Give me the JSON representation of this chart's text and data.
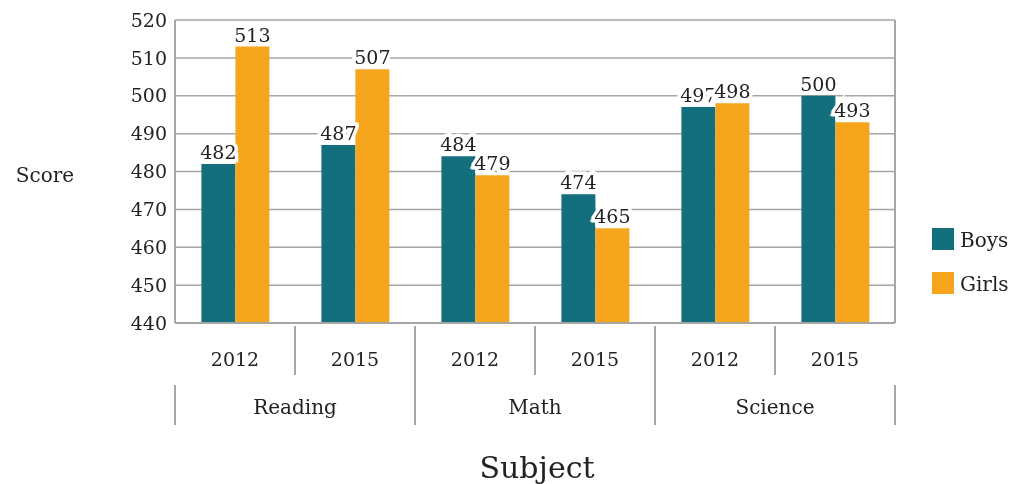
{
  "chart_data": {
    "type": "bar",
    "xlabel": "Subject",
    "ylabel": "Score",
    "categories": [
      "2012",
      "2015",
      "2012",
      "2015",
      "2012",
      "2015"
    ],
    "annotations": [
      "Reading",
      "Math",
      "Science"
    ],
    "series": [
      {
        "name": "Boys",
        "color": "#136f7e",
        "values": [
          482,
          487,
          484,
          474,
          497,
          500
        ]
      },
      {
        "name": "Girls",
        "color": "#f7a51d",
        "values": [
          513,
          507,
          479,
          465,
          498,
          493
        ]
      }
    ],
    "ylim": [
      440,
      520
    ],
    "yticks": [
      440,
      450,
      460,
      470,
      480,
      490,
      500,
      510,
      520
    ],
    "grid": "y",
    "legend": "right",
    "data_labels": true
  }
}
